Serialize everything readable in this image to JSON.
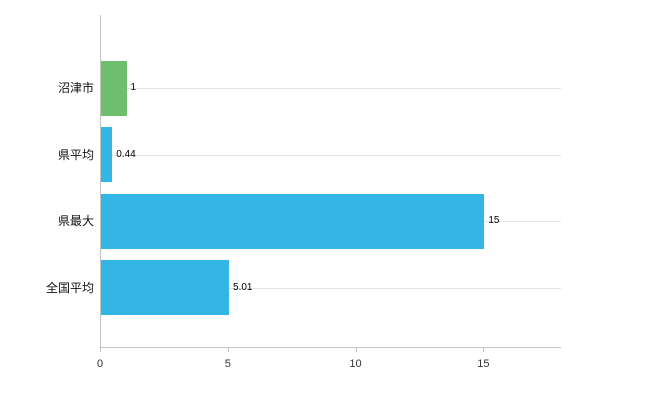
{
  "chart_data": {
    "type": "bar",
    "orientation": "horizontal",
    "title": "",
    "xlabel": "",
    "ylabel": "",
    "categories": [
      "沼津市",
      "県平均",
      "県最大",
      "全国平均"
    ],
    "values": [
      1,
      0.44,
      15,
      5.01
    ],
    "value_labels": [
      "1",
      "0.44",
      "15",
      "5.01"
    ],
    "bar_colors": [
      "#6dbf6d",
      "#33b5e5",
      "#33b5e5",
      "#33b5e5"
    ],
    "x_ticks": [
      0,
      5,
      10,
      15
    ],
    "x_tick_labels": [
      "0",
      "5",
      "10",
      "15"
    ],
    "xlim": [
      0,
      18
    ],
    "grid": "horizontal-per-category",
    "legend": "none",
    "colors": {
      "axis": "#c3c3c3",
      "gridline": "#e4e4e4",
      "label_text": "#111111",
      "tick_text": "#333333",
      "value_text": "#000000",
      "background": "#ffffff"
    }
  }
}
